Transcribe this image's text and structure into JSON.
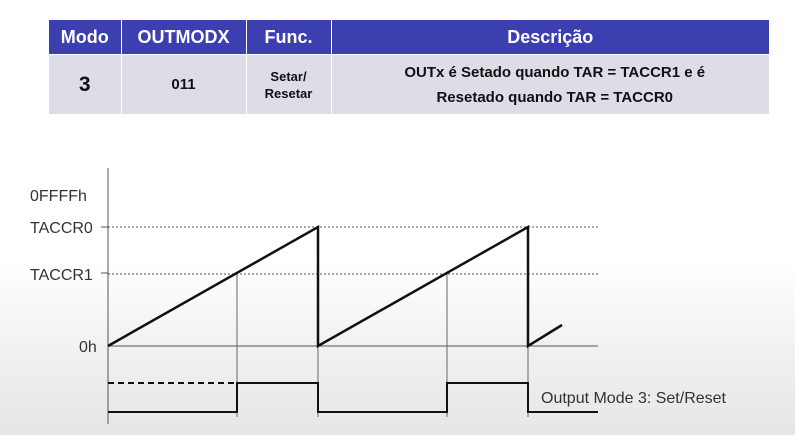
{
  "table": {
    "headers": {
      "mode": "Modo",
      "outmodx": "OUTMODX",
      "func": "Func.",
      "desc": "Descrição"
    },
    "row": {
      "mode": "3",
      "outmodx": "011",
      "func_line1": "Setar/",
      "func_line2": "Resetar",
      "desc_line1": "OUTx é Setado quando TAR = TACCR1 e é",
      "desc_line2": "Resetado quando  TAR = TACCR0"
    },
    "colors": {
      "header_bg": "#3b3fb0",
      "header_text": "#ffffff",
      "cell_bg": "#dcdde6"
    }
  },
  "diagram": {
    "y_labels": {
      "top": "0FFFFh",
      "taccr0": "TACCR0",
      "taccr1": "TACCR1",
      "zero": "0h"
    },
    "output_label": "Output Mode 3: Set/Reset"
  }
}
